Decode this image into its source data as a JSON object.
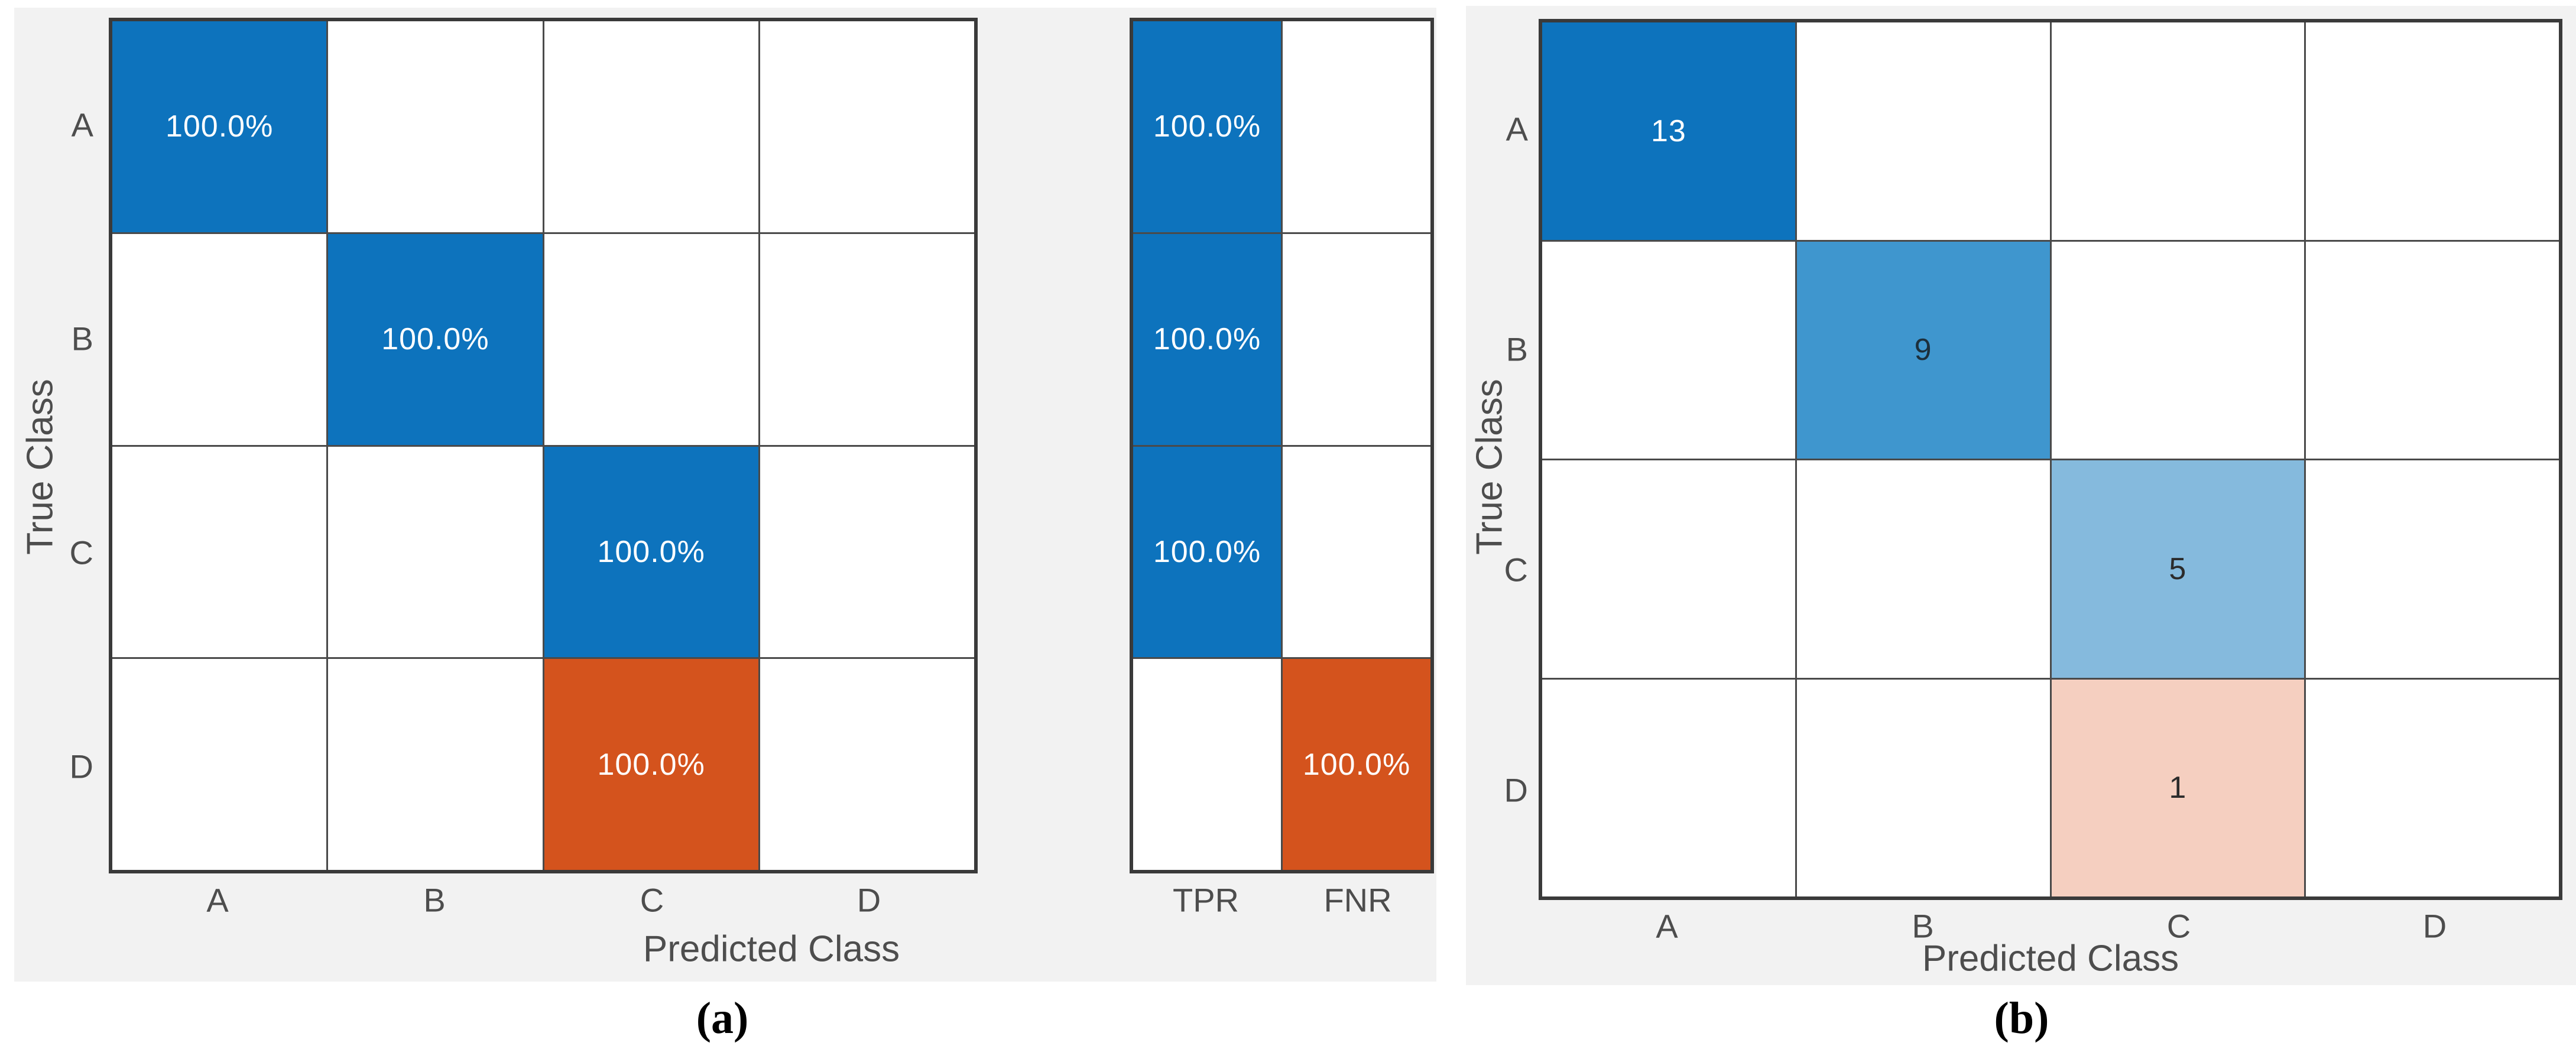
{
  "page": {
    "background": "#ffffff"
  },
  "colors": {
    "panel_bg": "#f2f2f2",
    "grid_line": "#4a4a4a",
    "axes_border": "#3a3a3a",
    "cell_empty": "#ffffff",
    "blue_full": "#0d73bd",
    "blue_mid": "#3f96ce",
    "blue_light": "#85badd",
    "orange_full": "#d4531d",
    "orange_light": "#f5cfc0",
    "cell_text_light": "#ffffff",
    "cell_text_dark": "#2b2b2b",
    "label_text": "#4d4d4d",
    "caption_text": "#000000"
  },
  "chart_data": [
    {
      "id": "a",
      "type": "heatmap",
      "subtype": "confusion-matrix-row-normalized",
      "caption": "(a)",
      "xlabel": "Predicted Class",
      "ylabel": "True Class",
      "x_categories": [
        "A",
        "B",
        "C",
        "D"
      ],
      "y_categories": [
        "A",
        "B",
        "C",
        "D"
      ],
      "values_percent": [
        [
          100.0,
          null,
          null,
          null
        ],
        [
          null,
          100.0,
          null,
          null
        ],
        [
          null,
          null,
          100.0,
          null
        ],
        [
          null,
          null,
          100.0,
          null
        ]
      ],
      "cells": [
        [
          {
            "t": "100.0%",
            "bg": "#0d73bd",
            "fg": "#ffffff"
          },
          null,
          null,
          null
        ],
        [
          null,
          {
            "t": "100.0%",
            "bg": "#0d73bd",
            "fg": "#ffffff"
          },
          null,
          null
        ],
        [
          null,
          null,
          {
            "t": "100.0%",
            "bg": "#0d73bd",
            "fg": "#ffffff"
          },
          null
        ],
        [
          null,
          null,
          {
            "t": "100.0%",
            "bg": "#d4531d",
            "fg": "#ffffff"
          },
          null
        ]
      ],
      "summary": {
        "labels": [
          "TPR",
          "FNR"
        ],
        "tpr_percent": [
          100.0,
          100.0,
          100.0,
          null
        ],
        "fnr_percent": [
          null,
          null,
          null,
          100.0
        ],
        "cells": [
          [
            {
              "t": "100.0%",
              "bg": "#0d73bd",
              "fg": "#ffffff"
            },
            null
          ],
          [
            {
              "t": "100.0%",
              "bg": "#0d73bd",
              "fg": "#ffffff"
            },
            null
          ],
          [
            {
              "t": "100.0%",
              "bg": "#0d73bd",
              "fg": "#ffffff"
            },
            null
          ],
          [
            null,
            {
              "t": "100.0%",
              "bg": "#d4531d",
              "fg": "#ffffff"
            }
          ]
        ]
      }
    },
    {
      "id": "b",
      "type": "heatmap",
      "subtype": "confusion-matrix-counts",
      "caption": "(b)",
      "xlabel": "Predicted Class",
      "ylabel": "True Class",
      "x_categories": [
        "A",
        "B",
        "C",
        "D"
      ],
      "y_categories": [
        "A",
        "B",
        "C",
        "D"
      ],
      "counts": [
        [
          13,
          null,
          null,
          null
        ],
        [
          null,
          9,
          null,
          null
        ],
        [
          null,
          null,
          5,
          null
        ],
        [
          null,
          null,
          1,
          null
        ]
      ],
      "cells": [
        [
          {
            "t": "13",
            "bg": "#0d73bd",
            "fg": "#ffffff"
          },
          null,
          null,
          null
        ],
        [
          null,
          {
            "t": "9",
            "bg": "#3f96ce",
            "fg": "#1c2f3c"
          },
          null,
          null
        ],
        [
          null,
          null,
          {
            "t": "5",
            "bg": "#85badd",
            "fg": "#2b2b2b"
          },
          null
        ],
        [
          null,
          null,
          {
            "t": "1",
            "bg": "#f5cfc0",
            "fg": "#2b2b2b"
          },
          null
        ]
      ]
    }
  ]
}
